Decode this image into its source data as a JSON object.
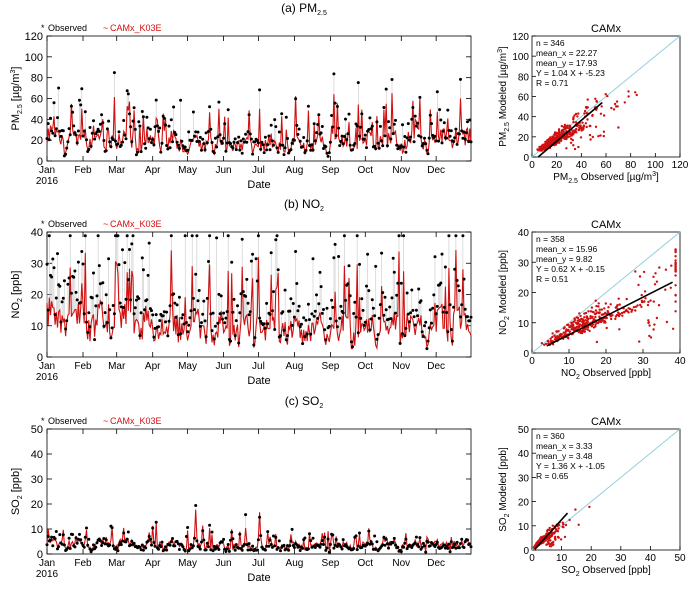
{
  "colors": {
    "observed": "#000000",
    "model": "#d01010",
    "one_to_one": "#8fd0dc",
    "fit": "#000000",
    "vline": "#c8c8c8"
  },
  "legend": {
    "observed_marker": "*",
    "observed": "Observed",
    "model_marker": "~",
    "model": "CAMx_K03E"
  },
  "date_axis": {
    "xlabel": "Date",
    "year": "2016",
    "months": [
      "Jan",
      "Feb",
      "Mar",
      "Apr",
      "May",
      "Jun",
      "Jul",
      "Aug",
      "Sep",
      "Oct",
      "Nov",
      "Dec"
    ],
    "month_start_days": [
      0,
      31,
      60,
      91,
      121,
      152,
      182,
      213,
      244,
      274,
      305,
      335
    ],
    "days": 366
  },
  "chart_data": [
    {
      "type": "line",
      "id": "pm25",
      "title_prefix": "(a) PM",
      "title_sub": "2.5",
      "ylabel_main": "PM",
      "ylabel_sub": "2.5",
      "ylabel_unit": " [µg/m",
      "ylabel_sup": "3",
      "ylabel_end": "]",
      "ylim": [
        0,
        120
      ],
      "yticks": [
        0,
        20,
        40,
        60,
        80,
        100,
        120
      ],
      "obs_base": 22.27,
      "mod_base": 17.93,
      "events": [
        [
          30,
          55
        ],
        [
          75,
          52
        ],
        [
          83,
          48
        ],
        [
          100,
          50
        ],
        [
          140,
          55
        ],
        [
          148,
          52
        ],
        [
          247,
          62
        ],
        [
          250,
          55
        ],
        [
          280,
          40
        ],
        [
          330,
          50
        ],
        [
          345,
          45
        ]
      ],
      "series": [
        {
          "name": "Observed",
          "n": 346,
          "mean": 22.27
        },
        {
          "name": "CAMx_K03E",
          "mean": 17.93
        }
      ],
      "scatter": {
        "title": "CAMx",
        "xlabel_main": "PM",
        "xlabel_sub": "2.5",
        "xlabel_unit": " Observed [µg/m",
        "xlabel_sup": "3",
        "xlabel_end": "]",
        "ylabel_main": "PM",
        "ylabel_sub": "2.5",
        "ylabel_unit": " Modeled [µg/m",
        "ylabel_sup": "3",
        "ylabel_end": "]",
        "lim": [
          0,
          120
        ],
        "ticks": [
          0,
          20,
          40,
          60,
          80,
          100,
          120
        ],
        "slope": 1.04,
        "intercept": -5.23,
        "fit_range": [
          5,
          57
        ],
        "r": 0.71,
        "stats": [
          "n = 346",
          "mean_x = 22.27",
          "mean_y = 17.93",
          "Y = 1.04 X + -5.23",
          "R = 0.71"
        ]
      }
    },
    {
      "type": "line",
      "id": "no2",
      "title_prefix": "(b) NO",
      "title_sub": "2",
      "ylabel_main": "NO",
      "ylabel_sub": "2",
      "ylabel_unit": " [ppb]",
      "ylabel_sup": "",
      "ylabel_end": "",
      "ylim": [
        0,
        40
      ],
      "yticks": [
        0,
        10,
        20,
        30,
        40
      ],
      "obs_base": 15.96,
      "mod_base": 9.82,
      "events": [
        [
          20,
          28
        ],
        [
          60,
          30
        ],
        [
          73,
          27
        ],
        [
          125,
          28
        ],
        [
          182,
          33
        ],
        [
          260,
          26
        ],
        [
          352,
          33
        ],
        [
          358,
          30
        ]
      ],
      "series": [
        {
          "name": "Observed",
          "n": 358,
          "mean": 15.96
        },
        {
          "name": "CAMx_K03E",
          "mean": 9.82
        }
      ],
      "scatter": {
        "title": "CAMx",
        "xlabel_main": "NO",
        "xlabel_sub": "2",
        "xlabel_unit": " Observed [ppb]",
        "xlabel_sup": "",
        "xlabel_end": "",
        "ylabel_main": "NO",
        "ylabel_sub": "2",
        "ylabel_unit": " Modeled [ppb]",
        "ylabel_sup": "",
        "ylabel_end": "",
        "lim": [
          0,
          40
        ],
        "ticks": [
          0,
          10,
          20,
          30,
          40
        ],
        "slope": 0.62,
        "intercept": -0.15,
        "fit_range": [
          4,
          38
        ],
        "r": 0.51,
        "stats": [
          "n = 358",
          "mean_x = 15.96",
          "mean_y = 9.82",
          "Y = 0.62 X + -0.15",
          "R = 0.51"
        ]
      }
    },
    {
      "type": "line",
      "id": "so2",
      "title_prefix": "(c) SO",
      "title_sub": "2",
      "ylabel_main": "SO",
      "ylabel_sub": "2",
      "ylabel_unit": " [ppb]",
      "ylabel_sup": "",
      "ylabel_end": "",
      "ylim": [
        0,
        50
      ],
      "yticks": [
        0,
        10,
        20,
        30,
        40,
        50
      ],
      "obs_base": 3.33,
      "mod_base": 3.48,
      "events": [
        [
          128,
          17
        ],
        [
          134,
          13
        ],
        [
          183,
          17
        ],
        [
          190,
          10
        ],
        [
          245,
          8
        ],
        [
          265,
          8
        ],
        [
          290,
          7
        ]
      ],
      "series": [
        {
          "name": "Observed",
          "n": 360,
          "mean": 3.33
        },
        {
          "name": "CAMx_K03E",
          "mean": 3.48
        }
      ],
      "scatter": {
        "title": "CAMx",
        "xlabel_main": "SO",
        "xlabel_sub": "2",
        "xlabel_unit": " Observed [ppb]",
        "xlabel_sup": "",
        "xlabel_end": "",
        "ylabel_main": "SO",
        "ylabel_sub": "2",
        "ylabel_unit": " Modeled [ppb]",
        "ylabel_sup": "",
        "ylabel_end": "",
        "lim": [
          0,
          50
        ],
        "ticks": [
          0,
          10,
          20,
          30,
          40,
          50
        ],
        "slope": 1.36,
        "intercept": -1.05,
        "fit_range": [
          1,
          12
        ],
        "r": 0.65,
        "stats": [
          "n = 360",
          "mean_x = 3.33",
          "mean_y = 3.48",
          "Y = 1.36 X + -1.05",
          "R = 0.65"
        ]
      }
    }
  ]
}
